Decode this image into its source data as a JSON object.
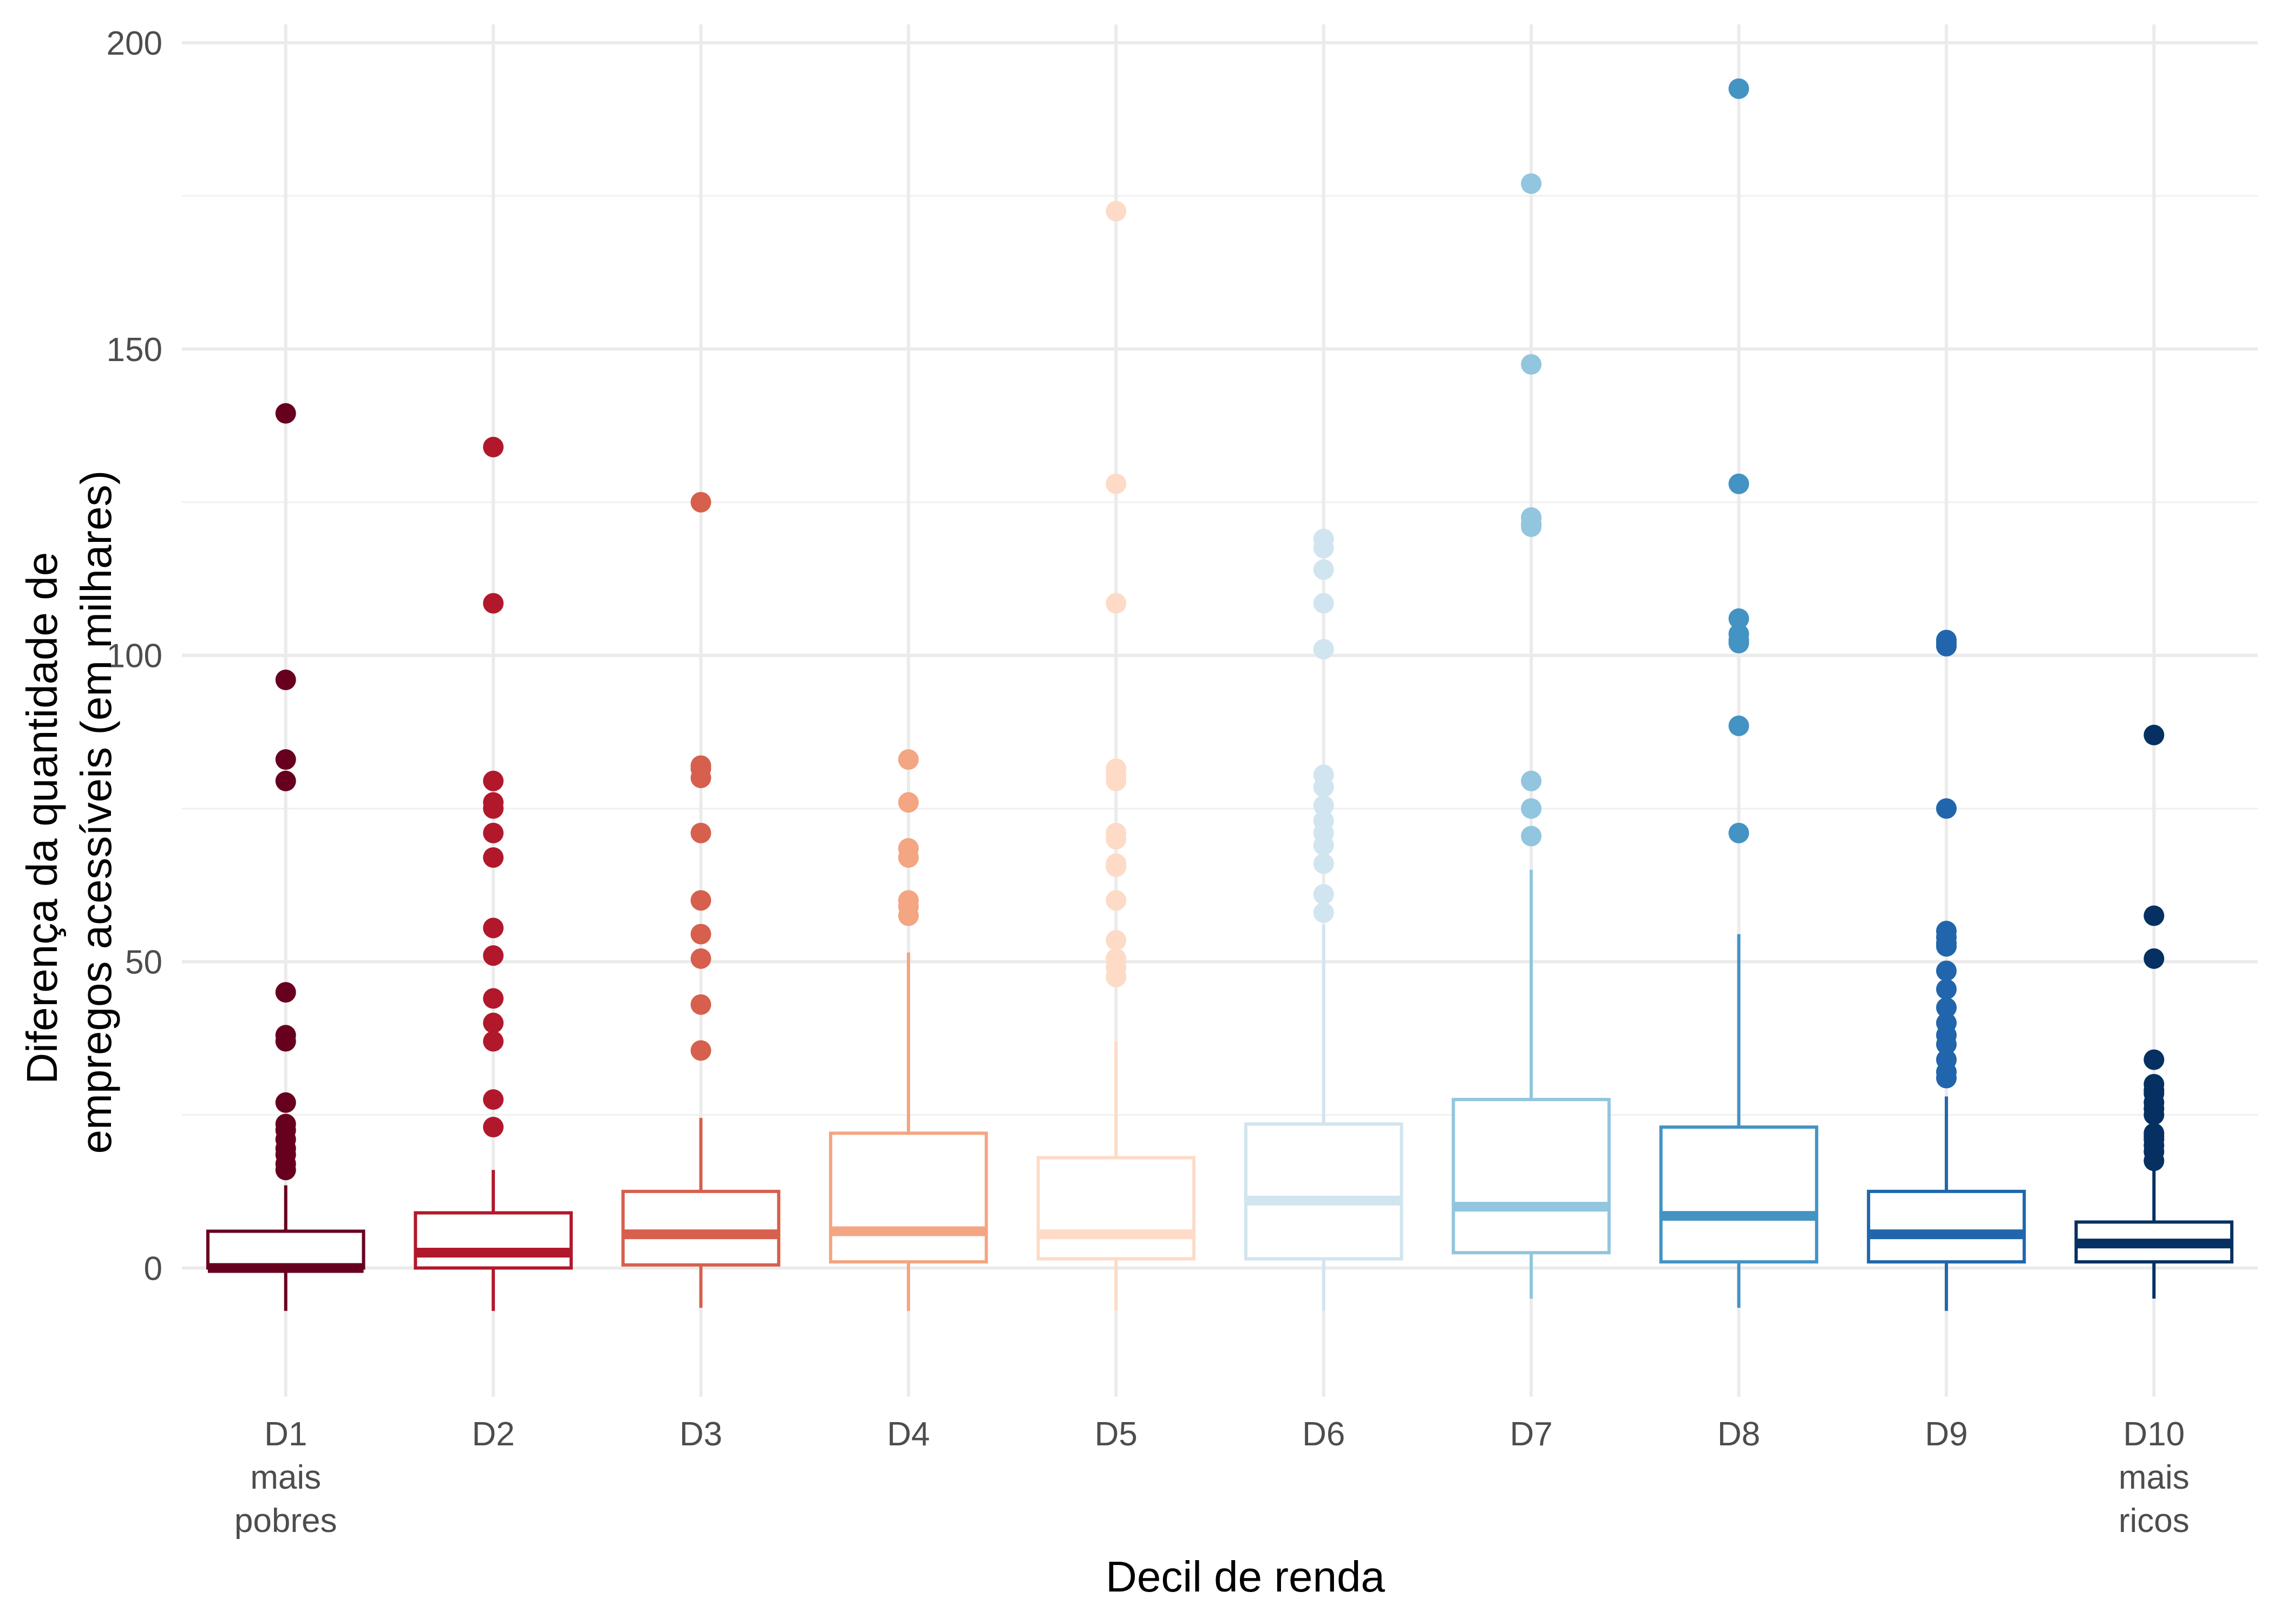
{
  "chart_data": {
    "type": "box",
    "xlabel": "Decil de renda",
    "ylabel_lines": [
      "Diferença da quantidade de",
      "empregos acessíveis (em milhares)"
    ],
    "ylim": [
      -21,
      203
    ],
    "yticks": [
      0,
      50,
      100,
      150,
      200
    ],
    "grid": true,
    "legend": "none",
    "categories": [
      {
        "label_lines": [
          "D1",
          "mais",
          "pobres"
        ],
        "color": "#67001F",
        "min": -7,
        "q1": 0,
        "median": 0,
        "q3": 6,
        "max": 13.5,
        "outliers": [
          139.5,
          96,
          83,
          79.5,
          45,
          38,
          37,
          27,
          23.5,
          22.5,
          21,
          19.5,
          18.5,
          17,
          16
        ]
      },
      {
        "label_lines": [
          "D2"
        ],
        "color": "#B2182B",
        "min": -7,
        "q1": 0,
        "median": 2.5,
        "q3": 9,
        "max": 16,
        "outliers": [
          134,
          108.5,
          79.5,
          76,
          75,
          71,
          67,
          55.5,
          51,
          44,
          40,
          37,
          27.5,
          23
        ]
      },
      {
        "label_lines": [
          "D3"
        ],
        "color": "#D6604D",
        "min": -6.5,
        "q1": 0.5,
        "median": 5.5,
        "q3": 12.5,
        "max": 24.5,
        "outliers": [
          125,
          82,
          81.5,
          80,
          71,
          60,
          54.5,
          50.5,
          43,
          35.5
        ]
      },
      {
        "label_lines": [
          "D4"
        ],
        "color": "#F4A582",
        "min": -7,
        "q1": 1,
        "median": 6,
        "q3": 22,
        "max": 51.5,
        "outliers": [
          83,
          76,
          68.5,
          67,
          60,
          59,
          57.5
        ]
      },
      {
        "label_lines": [
          "D5"
        ],
        "color": "#FDDBC7",
        "min": -7,
        "q1": 1.5,
        "median": 5.5,
        "q3": 18,
        "max": 37,
        "outliers": [
          172.5,
          128,
          108.5,
          81.5,
          80.5,
          79.5,
          71,
          70,
          66,
          65.5,
          60,
          53.5,
          50.5,
          49,
          47.5
        ]
      },
      {
        "label_lines": [
          "D6"
        ],
        "color": "#D1E5F0",
        "min": -7,
        "q1": 1.5,
        "median": 11,
        "q3": 23.5,
        "max": 56,
        "outliers": [
          119,
          117.5,
          114,
          108.5,
          101,
          80.5,
          78.5,
          75.5,
          73,
          71,
          69,
          66,
          61,
          58
        ]
      },
      {
        "label_lines": [
          "D7"
        ],
        "color": "#92C5DE",
        "min": -5,
        "q1": 2.5,
        "median": 10,
        "q3": 27.5,
        "max": 65,
        "outliers": [
          177,
          147.5,
          122.5,
          121.5,
          121,
          79.5,
          75,
          70.5
        ]
      },
      {
        "label_lines": [
          "D8"
        ],
        "color": "#4393C3",
        "min": -6.5,
        "q1": 1,
        "median": 8.5,
        "q3": 23,
        "max": 54.5,
        "outliers": [
          192.5,
          128,
          106,
          103.5,
          102.5,
          102,
          88.5,
          71
        ]
      },
      {
        "label_lines": [
          "D9"
        ],
        "color": "#2166AC",
        "min": -7,
        "q1": 1,
        "median": 5.5,
        "q3": 12.5,
        "max": 28,
        "outliers": [
          102.5,
          102,
          101.5,
          75,
          55,
          54,
          53,
          52.5,
          48.5,
          45.5,
          42.5,
          40,
          38,
          36.5,
          34,
          32,
          31
        ]
      },
      {
        "label_lines": [
          "D10",
          "mais",
          "ricos"
        ],
        "color": "#053061",
        "min": -5,
        "q1": 1,
        "median": 4,
        "q3": 7.5,
        "max": 16,
        "outliers": [
          87,
          57.5,
          50.5,
          34,
          30,
          29,
          28.5,
          27,
          26,
          25,
          22,
          21.5,
          21,
          20,
          19,
          17.5
        ]
      }
    ]
  }
}
